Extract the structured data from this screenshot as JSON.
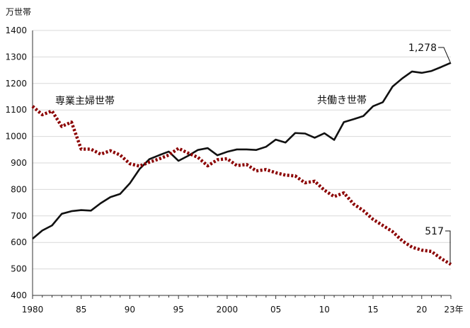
{
  "chart_data": {
    "type": "line",
    "title": "",
    "y_unit_label": "万世帯",
    "x_unit_suffix": "年",
    "ylim": [
      400,
      1400
    ],
    "xlim": [
      1980,
      2023
    ],
    "y_ticks": [
      {
        "value": 400,
        "label": "400"
      },
      {
        "value": 500,
        "label": "500"
      },
      {
        "value": 600,
        "label": "600"
      },
      {
        "value": 700,
        "label": "700"
      },
      {
        "value": 800,
        "label": "800"
      },
      {
        "value": 900,
        "label": "900"
      },
      {
        "value": 1000,
        "label": "1000"
      },
      {
        "value": 1100,
        "label": "1100"
      },
      {
        "value": 1200,
        "label": "1200"
      },
      {
        "value": 1300,
        "label": "1300"
      },
      {
        "value": 1400,
        "label": "1400"
      }
    ],
    "x_ticks": [
      {
        "value": 1980,
        "label": "1980"
      },
      {
        "value": 1985,
        "label": "85"
      },
      {
        "value": 1990,
        "label": "90"
      },
      {
        "value": 1995,
        "label": "95"
      },
      {
        "value": 2000,
        "label": "2000"
      },
      {
        "value": 2005,
        "label": "05"
      },
      {
        "value": 2010,
        "label": "10"
      },
      {
        "value": 2015,
        "label": "15"
      },
      {
        "value": 2020,
        "label": "20"
      },
      {
        "value": 2023,
        "label": "23年"
      }
    ],
    "x": [
      1980,
      1981,
      1982,
      1983,
      1984,
      1985,
      1986,
      1987,
      1988,
      1989,
      1990,
      1991,
      1992,
      1993,
      1994,
      1995,
      1996,
      1997,
      1998,
      1999,
      2000,
      2001,
      2002,
      2003,
      2004,
      2005,
      2006,
      2007,
      2008,
      2009,
      2010,
      2011,
      2012,
      2013,
      2014,
      2015,
      2016,
      2017,
      2018,
      2019,
      2020,
      2021,
      2022,
      2023
    ],
    "series": [
      {
        "name": "共働き世帯",
        "key": "dual_income",
        "color": "#111111",
        "style": "solid",
        "values": [
          614,
          645,
          664,
          708,
          718,
          722,
          720,
          748,
          771,
          783,
          823,
          877,
          914,
          929,
          943,
          908,
          927,
          949,
          956,
          929,
          942,
          951,
          951,
          949,
          961,
          988,
          977,
          1013,
          1011,
          995,
          1012,
          987,
          1054,
          1065,
          1077,
          1114,
          1129,
          1188,
          1219,
          1245,
          1240,
          1247,
          1262,
          1278
        ],
        "end_label": "1,278"
      },
      {
        "name": "専業主婦世帯",
        "key": "homemaker",
        "color": "#8b0000",
        "style": "dotted",
        "values": [
          1114,
          1082,
          1096,
          1038,
          1054,
          952,
          952,
          933,
          946,
          930,
          897,
          888,
          903,
          915,
          930,
          955,
          937,
          921,
          889,
          912,
          916,
          890,
          894,
          870,
          875,
          863,
          854,
          851,
          825,
          831,
          797,
          773,
          787,
          745,
          720,
          687,
          664,
          641,
          606,
          582,
          571,
          566,
          539,
          517
        ],
        "end_label": "517"
      }
    ]
  }
}
